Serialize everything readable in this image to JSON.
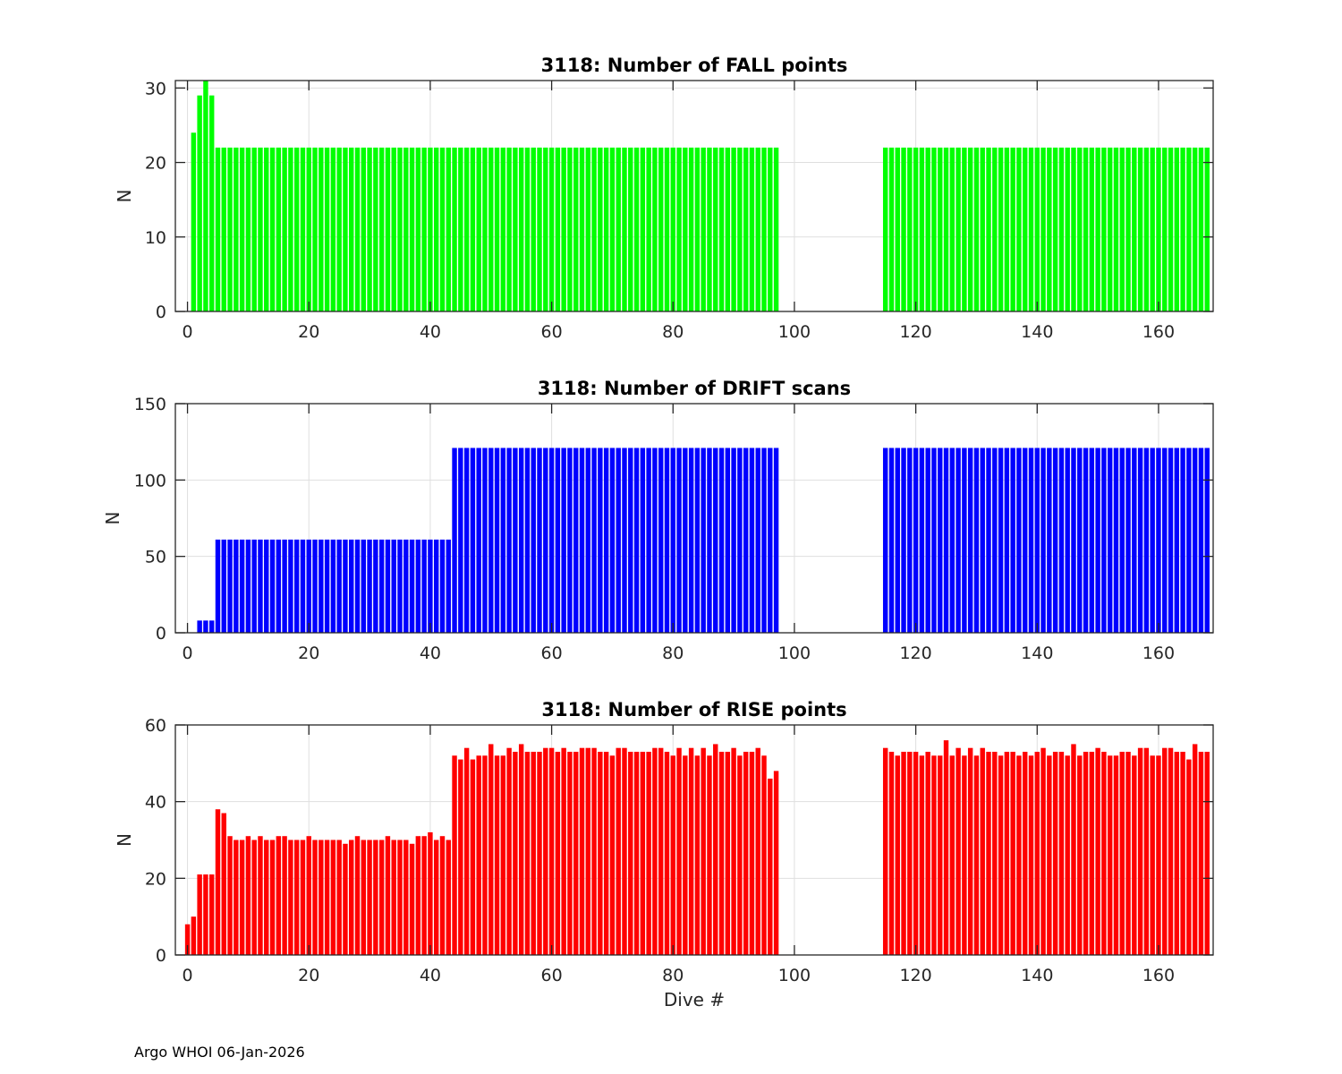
{
  "footer": "Argo WHOI 06-Jan-2026",
  "chart_data": [
    {
      "type": "bar",
      "title": "3118: Number of FALL points",
      "xlabel": "",
      "ylabel": "N",
      "color": "#00ff00",
      "x_first": 0,
      "xlim": [
        -2,
        169
      ],
      "ylim": [
        0,
        31
      ],
      "xticks": [
        0,
        20,
        40,
        60,
        80,
        100,
        120,
        140,
        160
      ],
      "yticks": [
        0,
        10,
        20,
        30
      ],
      "grid": true,
      "values": [
        0,
        24,
        29,
        31,
        29,
        22,
        22,
        22,
        22,
        22,
        22,
        22,
        22,
        22,
        22,
        22,
        22,
        22,
        22,
        22,
        22,
        22,
        22,
        22,
        22,
        22,
        22,
        22,
        22,
        22,
        22,
        22,
        22,
        22,
        22,
        22,
        22,
        22,
        22,
        22,
        22,
        22,
        22,
        22,
        22,
        22,
        22,
        22,
        22,
        22,
        22,
        22,
        22,
        22,
        22,
        22,
        22,
        22,
        22,
        22,
        22,
        22,
        22,
        22,
        22,
        22,
        22,
        22,
        22,
        22,
        22,
        22,
        22,
        22,
        22,
        22,
        22,
        22,
        22,
        22,
        22,
        22,
        22,
        22,
        22,
        22,
        22,
        22,
        22,
        22,
        22,
        22,
        22,
        22,
        22,
        22,
        22,
        22,
        0,
        0,
        0,
        0,
        0,
        0,
        0,
        0,
        0,
        0,
        0,
        0,
        0,
        0,
        0,
        0,
        0,
        22,
        22,
        22,
        22,
        22,
        22,
        22,
        22,
        22,
        22,
        22,
        22,
        22,
        22,
        22,
        22,
        22,
        22,
        22,
        22,
        22,
        22,
        22,
        22,
        22,
        22,
        22,
        22,
        22,
        22,
        22,
        22,
        22,
        22,
        22,
        22,
        22,
        22,
        22,
        22,
        22,
        22,
        22,
        22,
        22,
        22,
        22,
        22,
        22,
        22,
        22,
        22,
        22,
        22
      ]
    },
    {
      "type": "bar",
      "title": "3118: Number of DRIFT scans",
      "xlabel": "",
      "ylabel": "N",
      "color": "#0000ff",
      "x_first": 0,
      "xlim": [
        -2,
        169
      ],
      "ylim": [
        0,
        150
      ],
      "xticks": [
        0,
        20,
        40,
        60,
        80,
        100,
        120,
        140,
        160
      ],
      "yticks": [
        0,
        50,
        100,
        150
      ],
      "grid": true,
      "values": [
        0,
        0,
        8,
        8,
        8,
        61,
        61,
        61,
        61,
        61,
        61,
        61,
        61,
        61,
        61,
        61,
        61,
        61,
        61,
        61,
        61,
        61,
        61,
        61,
        61,
        61,
        61,
        61,
        61,
        61,
        61,
        61,
        61,
        61,
        61,
        61,
        61,
        61,
        61,
        61,
        61,
        61,
        61,
        61,
        121,
        121,
        121,
        121,
        121,
        121,
        121,
        121,
        121,
        121,
        121,
        121,
        121,
        121,
        121,
        121,
        121,
        121,
        121,
        121,
        121,
        121,
        121,
        121,
        121,
        121,
        121,
        121,
        121,
        121,
        121,
        121,
        121,
        121,
        121,
        121,
        121,
        121,
        121,
        121,
        121,
        121,
        121,
        121,
        121,
        121,
        121,
        121,
        121,
        121,
        121,
        121,
        121,
        121,
        0,
        0,
        0,
        0,
        0,
        0,
        0,
        0,
        0,
        0,
        0,
        0,
        0,
        0,
        0,
        0,
        0,
        121,
        121,
        121,
        121,
        121,
        121,
        121,
        121,
        121,
        121,
        121,
        121,
        121,
        121,
        121,
        121,
        121,
        121,
        121,
        121,
        121,
        121,
        121,
        121,
        121,
        121,
        121,
        121,
        121,
        121,
        121,
        121,
        121,
        121,
        121,
        121,
        121,
        121,
        121,
        121,
        121,
        121,
        121,
        121,
        121,
        121,
        121,
        121,
        121,
        121,
        121,
        121,
        121,
        121
      ]
    },
    {
      "type": "bar",
      "title": "3118: Number of RISE points",
      "xlabel": "Dive #",
      "ylabel": "N",
      "color": "#ff0000",
      "x_first": 0,
      "xlim": [
        -2,
        169
      ],
      "ylim": [
        0,
        60
      ],
      "xticks": [
        0,
        20,
        40,
        60,
        80,
        100,
        120,
        140,
        160
      ],
      "yticks": [
        0,
        20,
        40,
        60
      ],
      "grid": true,
      "values": [
        8,
        10,
        21,
        21,
        21,
        38,
        37,
        31,
        30,
        30,
        31,
        30,
        31,
        30,
        30,
        31,
        31,
        30,
        30,
        30,
        31,
        30,
        30,
        30,
        30,
        30,
        29,
        30,
        31,
        30,
        30,
        30,
        30,
        31,
        30,
        30,
        30,
        29,
        31,
        31,
        32,
        30,
        31,
        30,
        52,
        51,
        54,
        51,
        52,
        52,
        55,
        52,
        52,
        54,
        53,
        55,
        53,
        53,
        53,
        54,
        54,
        53,
        54,
        53,
        53,
        54,
        54,
        54,
        53,
        53,
        52,
        54,
        54,
        53,
        53,
        53,
        53,
        54,
        54,
        53,
        52,
        54,
        52,
        54,
        52,
        54,
        52,
        55,
        53,
        53,
        54,
        52,
        53,
        53,
        54,
        52,
        46,
        48,
        0,
        0,
        0,
        0,
        0,
        0,
        0,
        0,
        0,
        0,
        0,
        0,
        0,
        0,
        0,
        0,
        0,
        54,
        53,
        52,
        53,
        53,
        53,
        52,
        53,
        52,
        52,
        56,
        52,
        54,
        52,
        54,
        52,
        54,
        53,
        53,
        52,
        53,
        53,
        52,
        53,
        52,
        53,
        54,
        52,
        53,
        53,
        52,
        55,
        52,
        53,
        53,
        54,
        53,
        52,
        52,
        53,
        53,
        52,
        54,
        54,
        52,
        52,
        54,
        54,
        53,
        53,
        51,
        55,
        53,
        53
      ]
    }
  ]
}
